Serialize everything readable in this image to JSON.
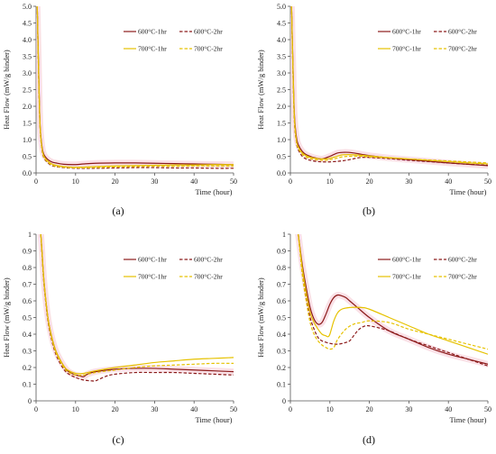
{
  "colors": {
    "s600_1": "#8B1A1A",
    "s600_2": "#8B1A1A",
    "s700_1": "#E6C200",
    "s700_2": "#E6C200",
    "band": "#F6C9D3",
    "grid": "#D9D9D9",
    "axis": "#555555"
  },
  "chart_data": [
    {
      "type": "line",
      "panel_label": "(a)",
      "xlabel": "Time (hour)",
      "ylabel": "Heat Flow (mW/g binder)",
      "xlim": [
        0,
        50
      ],
      "ylim": [
        0,
        5
      ],
      "xticks": [
        "0",
        "10",
        "20",
        "30",
        "40",
        "50"
      ],
      "yticks": [
        "0.0",
        "0.5",
        "1.0",
        "1.5",
        "2.0",
        "2.5",
        "3.0",
        "3.5",
        "4.0",
        "4.5",
        "5.0"
      ],
      "grid": false,
      "legend": "top-right",
      "series": [
        {
          "name": "600°C-1hr",
          "style": "solid",
          "color_key": "s600_1",
          "x": [
            0.3,
            0.6,
            1,
            1.5,
            2,
            3,
            4,
            5,
            7,
            10,
            12,
            15,
            20,
            25,
            30,
            35,
            40,
            45,
            50
          ],
          "y": [
            5.0,
            3.4,
            1.5,
            0.8,
            0.55,
            0.4,
            0.33,
            0.3,
            0.26,
            0.25,
            0.27,
            0.29,
            0.3,
            0.3,
            0.29,
            0.28,
            0.27,
            0.26,
            0.25
          ]
        },
        {
          "name": "600°C-2hr",
          "style": "dashed",
          "color_key": "s600_2",
          "x": [
            0.3,
            0.6,
            1,
            1.5,
            2,
            3,
            4,
            5,
            7,
            10,
            15,
            20,
            25,
            30,
            35,
            40,
            45,
            50
          ],
          "y": [
            5.0,
            3.2,
            1.4,
            0.7,
            0.45,
            0.3,
            0.22,
            0.19,
            0.16,
            0.14,
            0.14,
            0.15,
            0.16,
            0.16,
            0.15,
            0.15,
            0.14,
            0.14
          ]
        },
        {
          "name": "700°C-1hr",
          "style": "solid",
          "color_key": "s700_1",
          "x": [
            0.3,
            0.6,
            1,
            1.5,
            2,
            3,
            4,
            5,
            7,
            10,
            15,
            20,
            25,
            30,
            35,
            40,
            45,
            50
          ],
          "y": [
            5.0,
            3.3,
            1.45,
            0.75,
            0.5,
            0.35,
            0.27,
            0.23,
            0.19,
            0.17,
            0.19,
            0.21,
            0.22,
            0.23,
            0.24,
            0.24,
            0.25,
            0.25
          ]
        },
        {
          "name": "700°C-2hr",
          "style": "dashed",
          "color_key": "s700_2",
          "x": [
            0.3,
            0.6,
            1,
            1.5,
            2,
            3,
            4,
            5,
            7,
            10,
            15,
            20,
            25,
            30,
            35,
            40,
            45,
            50
          ],
          "y": [
            5.0,
            3.25,
            1.42,
            0.72,
            0.47,
            0.32,
            0.24,
            0.2,
            0.17,
            0.15,
            0.16,
            0.18,
            0.19,
            0.2,
            0.2,
            0.21,
            0.21,
            0.21
          ]
        }
      ]
    },
    {
      "type": "line",
      "panel_label": "(b)",
      "xlabel": "Time (hour)",
      "ylabel": "Heat Flow (mW/g binder)",
      "xlim": [
        0,
        50
      ],
      "ylim": [
        0,
        5
      ],
      "xticks": [
        "0",
        "10",
        "20",
        "30",
        "40",
        "50"
      ],
      "yticks": [
        "0.0",
        "0.5",
        "1.0",
        "1.5",
        "2.0",
        "2.5",
        "3.0",
        "3.5",
        "4.0",
        "4.5",
        "5.0"
      ],
      "grid": false,
      "legend": "top-right",
      "series": [
        {
          "name": "600°C-1hr",
          "style": "solid",
          "color_key": "s600_1",
          "x": [
            0.3,
            0.6,
            1,
            1.5,
            2,
            3,
            4,
            5,
            6,
            8,
            10,
            12,
            14,
            16,
            18,
            20,
            25,
            30,
            35,
            40,
            45,
            50
          ],
          "y": [
            5.0,
            3.5,
            1.8,
            1.1,
            0.85,
            0.65,
            0.55,
            0.5,
            0.46,
            0.42,
            0.5,
            0.6,
            0.62,
            0.6,
            0.56,
            0.52,
            0.45,
            0.4,
            0.35,
            0.3,
            0.26,
            0.22
          ]
        },
        {
          "name": "600°C-2hr",
          "style": "dashed",
          "color_key": "s600_2",
          "x": [
            0.3,
            0.6,
            1,
            1.5,
            2,
            3,
            4,
            5,
            7,
            9,
            11,
            13,
            15,
            17,
            19,
            21,
            25,
            30,
            35,
            40,
            45,
            50
          ],
          "y": [
            5.0,
            3.3,
            1.6,
            0.95,
            0.7,
            0.5,
            0.42,
            0.38,
            0.34,
            0.33,
            0.34,
            0.36,
            0.4,
            0.45,
            0.47,
            0.46,
            0.43,
            0.38,
            0.34,
            0.3,
            0.26,
            0.23
          ]
        },
        {
          "name": "700°C-1hr",
          "style": "solid",
          "color_key": "s700_1",
          "x": [
            0.3,
            0.6,
            1,
            1.5,
            2,
            3,
            4,
            5,
            7,
            9,
            11,
            13,
            15,
            18,
            20,
            25,
            30,
            35,
            40,
            45,
            50
          ],
          "y": [
            5.0,
            3.4,
            1.7,
            1.0,
            0.78,
            0.6,
            0.52,
            0.47,
            0.43,
            0.42,
            0.47,
            0.54,
            0.55,
            0.53,
            0.51,
            0.46,
            0.42,
            0.38,
            0.34,
            0.3,
            0.27
          ]
        },
        {
          "name": "700°C-2hr",
          "style": "dashed",
          "color_key": "s700_2",
          "x": [
            0.3,
            0.6,
            1,
            1.5,
            2,
            3,
            4,
            5,
            7,
            9,
            11,
            13,
            15,
            18,
            20,
            25,
            30,
            35,
            40,
            45,
            50
          ],
          "y": [
            5.0,
            3.35,
            1.65,
            0.97,
            0.74,
            0.56,
            0.48,
            0.43,
            0.39,
            0.38,
            0.42,
            0.48,
            0.5,
            0.5,
            0.48,
            0.45,
            0.42,
            0.39,
            0.36,
            0.33,
            0.3
          ]
        }
      ]
    },
    {
      "type": "line",
      "panel_label": "(c)",
      "xlabel": "Time (hour)",
      "ylabel": "Heat Flow (mW/g binder)",
      "xlim": [
        0,
        50
      ],
      "ylim": [
        0,
        1
      ],
      "xticks": [
        "0",
        "10",
        "20",
        "30",
        "40",
        "50"
      ],
      "yticks": [
        "0",
        "0.1",
        "0.2",
        "0.3",
        "0.4",
        "0.5",
        "0.6",
        "0.7",
        "0.8",
        "0.9",
        "1"
      ],
      "grid": false,
      "legend": "top-right",
      "series": [
        {
          "name": "600°C-1hr",
          "style": "solid",
          "color_key": "s600_1",
          "x": [
            1.2,
            1.5,
            2,
            3,
            4,
            5,
            6,
            7,
            8,
            9,
            10,
            11,
            12,
            13,
            15,
            20,
            25,
            30,
            35,
            40,
            45,
            50
          ],
          "y": [
            1.0,
            0.9,
            0.72,
            0.5,
            0.38,
            0.3,
            0.25,
            0.21,
            0.18,
            0.165,
            0.155,
            0.15,
            0.145,
            0.16,
            0.175,
            0.19,
            0.195,
            0.195,
            0.19,
            0.185,
            0.18,
            0.175
          ]
        },
        {
          "name": "600°C-2hr",
          "style": "dashed",
          "color_key": "s600_2",
          "x": [
            1.2,
            1.5,
            2,
            3,
            4,
            5,
            6,
            7,
            8,
            10,
            12,
            14,
            15,
            16,
            18,
            20,
            25,
            30,
            35,
            40,
            45,
            50
          ],
          "y": [
            1.0,
            0.88,
            0.7,
            0.48,
            0.36,
            0.28,
            0.23,
            0.19,
            0.165,
            0.14,
            0.125,
            0.12,
            0.12,
            0.13,
            0.15,
            0.16,
            0.17,
            0.17,
            0.17,
            0.165,
            0.16,
            0.155
          ]
        },
        {
          "name": "700°C-1hr",
          "style": "solid",
          "color_key": "s700_1",
          "x": [
            1.2,
            1.5,
            2,
            3,
            4,
            5,
            6,
            7,
            8,
            10,
            12,
            15,
            20,
            25,
            30,
            35,
            40,
            45,
            50
          ],
          "y": [
            1.0,
            0.9,
            0.72,
            0.5,
            0.38,
            0.3,
            0.25,
            0.21,
            0.185,
            0.165,
            0.165,
            0.18,
            0.2,
            0.215,
            0.23,
            0.24,
            0.25,
            0.255,
            0.26
          ]
        },
        {
          "name": "700°C-2hr",
          "style": "dashed",
          "color_key": "s700_2",
          "x": [
            1.2,
            1.5,
            2,
            3,
            4,
            5,
            6,
            7,
            8,
            10,
            12,
            15,
            20,
            25,
            30,
            35,
            40,
            45,
            50
          ],
          "y": [
            1.0,
            0.89,
            0.71,
            0.49,
            0.37,
            0.29,
            0.24,
            0.2,
            0.175,
            0.155,
            0.155,
            0.17,
            0.185,
            0.2,
            0.21,
            0.215,
            0.22,
            0.225,
            0.225
          ]
        }
      ]
    },
    {
      "type": "line",
      "panel_label": "(d)",
      "xlabel": "Time (hour)",
      "ylabel": "Heat Flow (mW/g binder)",
      "xlim": [
        0,
        50
      ],
      "ylim": [
        0,
        1
      ],
      "xticks": [
        "0",
        "10",
        "20",
        "30",
        "40",
        "50"
      ],
      "yticks": [
        "0",
        "0.1",
        "0.2",
        "0.3",
        "0.4",
        "0.5",
        "0.6",
        "0.7",
        "0.8",
        "0.9",
        "1"
      ],
      "grid": false,
      "legend": "top-right",
      "series": [
        {
          "name": "600°C-1hr",
          "style": "solid",
          "color_key": "s600_1",
          "x": [
            2,
            3,
            4,
            5,
            6,
            7,
            8,
            9,
            10,
            11,
            12,
            13,
            14,
            15,
            17,
            20,
            25,
            30,
            35,
            40,
            45,
            50
          ],
          "y": [
            1.0,
            0.82,
            0.68,
            0.56,
            0.49,
            0.46,
            0.47,
            0.52,
            0.58,
            0.62,
            0.635,
            0.63,
            0.62,
            0.6,
            0.56,
            0.5,
            0.42,
            0.37,
            0.32,
            0.28,
            0.25,
            0.22
          ]
        },
        {
          "name": "600°C-2hr",
          "style": "dashed",
          "color_key": "s600_2",
          "x": [
            2,
            3,
            4,
            5,
            6,
            7,
            8,
            10,
            12,
            14,
            15,
            16,
            17,
            18,
            19,
            20,
            22,
            25,
            30,
            35,
            40,
            45,
            50
          ],
          "y": [
            1.0,
            0.78,
            0.62,
            0.5,
            0.43,
            0.38,
            0.36,
            0.345,
            0.34,
            0.35,
            0.36,
            0.39,
            0.42,
            0.44,
            0.45,
            0.45,
            0.44,
            0.42,
            0.37,
            0.33,
            0.29,
            0.25,
            0.21
          ]
        },
        {
          "name": "700°C-1hr",
          "style": "solid",
          "color_key": "s700_1",
          "x": [
            2,
            3,
            4,
            5,
            6,
            7,
            8,
            9,
            9.5,
            10,
            11,
            12,
            13,
            15,
            18,
            20,
            25,
            30,
            35,
            40,
            45,
            50
          ],
          "y": [
            1.0,
            0.8,
            0.65,
            0.53,
            0.47,
            0.43,
            0.4,
            0.39,
            0.385,
            0.4,
            0.48,
            0.53,
            0.55,
            0.56,
            0.56,
            0.55,
            0.5,
            0.45,
            0.4,
            0.36,
            0.32,
            0.28
          ]
        },
        {
          "name": "700°C-2hr",
          "style": "dashed",
          "color_key": "s700_2",
          "x": [
            2,
            3,
            4,
            5,
            6,
            7,
            8,
            9,
            10,
            11,
            12,
            14,
            16,
            18,
            20,
            25,
            30,
            35,
            40,
            45,
            50
          ],
          "y": [
            1.0,
            0.76,
            0.6,
            0.47,
            0.4,
            0.36,
            0.335,
            0.32,
            0.31,
            0.32,
            0.37,
            0.43,
            0.46,
            0.47,
            0.48,
            0.47,
            0.43,
            0.4,
            0.37,
            0.34,
            0.31
          ]
        }
      ]
    }
  ]
}
